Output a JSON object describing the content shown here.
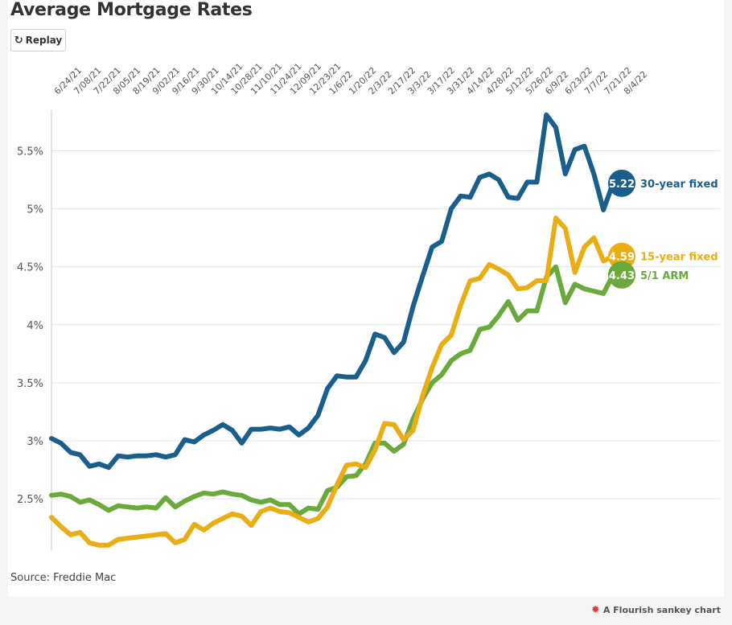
{
  "title": "Average Mortgage Rates",
  "replay_label": "Replay",
  "replay_icon": "replay-icon",
  "source": "Source: Freddie Mac",
  "branding": "A Flourish sankey chart",
  "chart_data": {
    "type": "line",
    "x_tick_labels": [
      "6/24/21",
      "7/08/21",
      "7/22/21",
      "8/05/21",
      "8/19/21",
      "9/02/21",
      "9/16/21",
      "9/30/21",
      "10/14/21",
      "10/28/21",
      "11/10/21",
      "11/24/21",
      "12/09/21",
      "12/23/21",
      "1/6/22",
      "1/20/22",
      "2/3/22",
      "2/17/22",
      "3/3/22",
      "3/17/22",
      "3/31/22",
      "4/14/22",
      "4/28/22",
      "5/12/22",
      "5/26/22",
      "6/9/22",
      "6/23/22",
      "7/7/22",
      "7/21/22",
      "8/4/22"
    ],
    "y_ticks": [
      2.5,
      3,
      3.5,
      4,
      4.5,
      5,
      5.5
    ],
    "y_tick_labels": [
      "2.5%",
      "3%",
      "3.5%",
      "4%",
      "4.5%",
      "5%",
      "5.5%"
    ],
    "ylim": [
      2.05,
      5.85
    ],
    "grid": true,
    "series": [
      {
        "name": "30-year fixed",
        "color": "#1a5e8c",
        "end_label": "5.22",
        "values": [
          3.02,
          2.98,
          2.9,
          2.88,
          2.78,
          2.8,
          2.77,
          2.87,
          2.86,
          2.87,
          2.87,
          2.88,
          2.86,
          2.88,
          3.01,
          2.99,
          3.05,
          3.09,
          3.14,
          3.09,
          2.98,
          3.1,
          3.1,
          3.11,
          3.1,
          3.12,
          3.05,
          3.11,
          3.22,
          3.45,
          3.56,
          3.55,
          3.55,
          3.69,
          3.92,
          3.89,
          3.76,
          3.85,
          4.16,
          4.42,
          4.67,
          4.72,
          5.0,
          5.11,
          5.1,
          5.27,
          5.3,
          5.25,
          5.1,
          5.09,
          5.23,
          5.23,
          5.81,
          5.7,
          5.3,
          5.51,
          5.54,
          5.3,
          4.99,
          5.22
        ]
      },
      {
        "name": "15-year fixed",
        "color": "#eaae14",
        "end_label": "4.59",
        "values": [
          2.34,
          2.26,
          2.19,
          2.21,
          2.12,
          2.1,
          2.1,
          2.15,
          2.16,
          2.17,
          2.18,
          2.19,
          2.2,
          2.12,
          2.15,
          2.28,
          2.23,
          2.29,
          2.33,
          2.37,
          2.35,
          2.27,
          2.39,
          2.42,
          2.39,
          2.38,
          2.34,
          2.3,
          2.33,
          2.43,
          2.62,
          2.79,
          2.8,
          2.77,
          2.92,
          3.15,
          3.14,
          3.01,
          3.09,
          3.39,
          3.63,
          3.83,
          3.91,
          4.17,
          4.38,
          4.4,
          4.52,
          4.48,
          4.43,
          4.31,
          4.32,
          4.38,
          4.38,
          4.92,
          4.83,
          4.45,
          4.67,
          4.75,
          4.55,
          4.59
        ]
      },
      {
        "name": "5/1 ARM",
        "color": "#6aaa3c",
        "end_label": "4.43",
        "values": [
          2.53,
          2.54,
          2.52,
          2.47,
          2.49,
          2.45,
          2.4,
          2.44,
          2.43,
          2.42,
          2.43,
          2.42,
          2.51,
          2.43,
          2.48,
          2.52,
          2.55,
          2.54,
          2.56,
          2.54,
          2.53,
          2.49,
          2.47,
          2.49,
          2.45,
          2.45,
          2.37,
          2.42,
          2.41,
          2.57,
          2.6,
          2.69,
          2.7,
          2.8,
          2.98,
          2.98,
          2.91,
          2.97,
          3.19,
          3.36,
          3.5,
          3.57,
          3.69,
          3.75,
          3.78,
          3.96,
          3.98,
          4.08,
          4.2,
          4.04,
          4.12,
          4.12,
          4.41,
          4.5,
          4.19,
          4.35,
          4.31,
          4.29,
          4.27,
          4.43
        ]
      }
    ]
  }
}
